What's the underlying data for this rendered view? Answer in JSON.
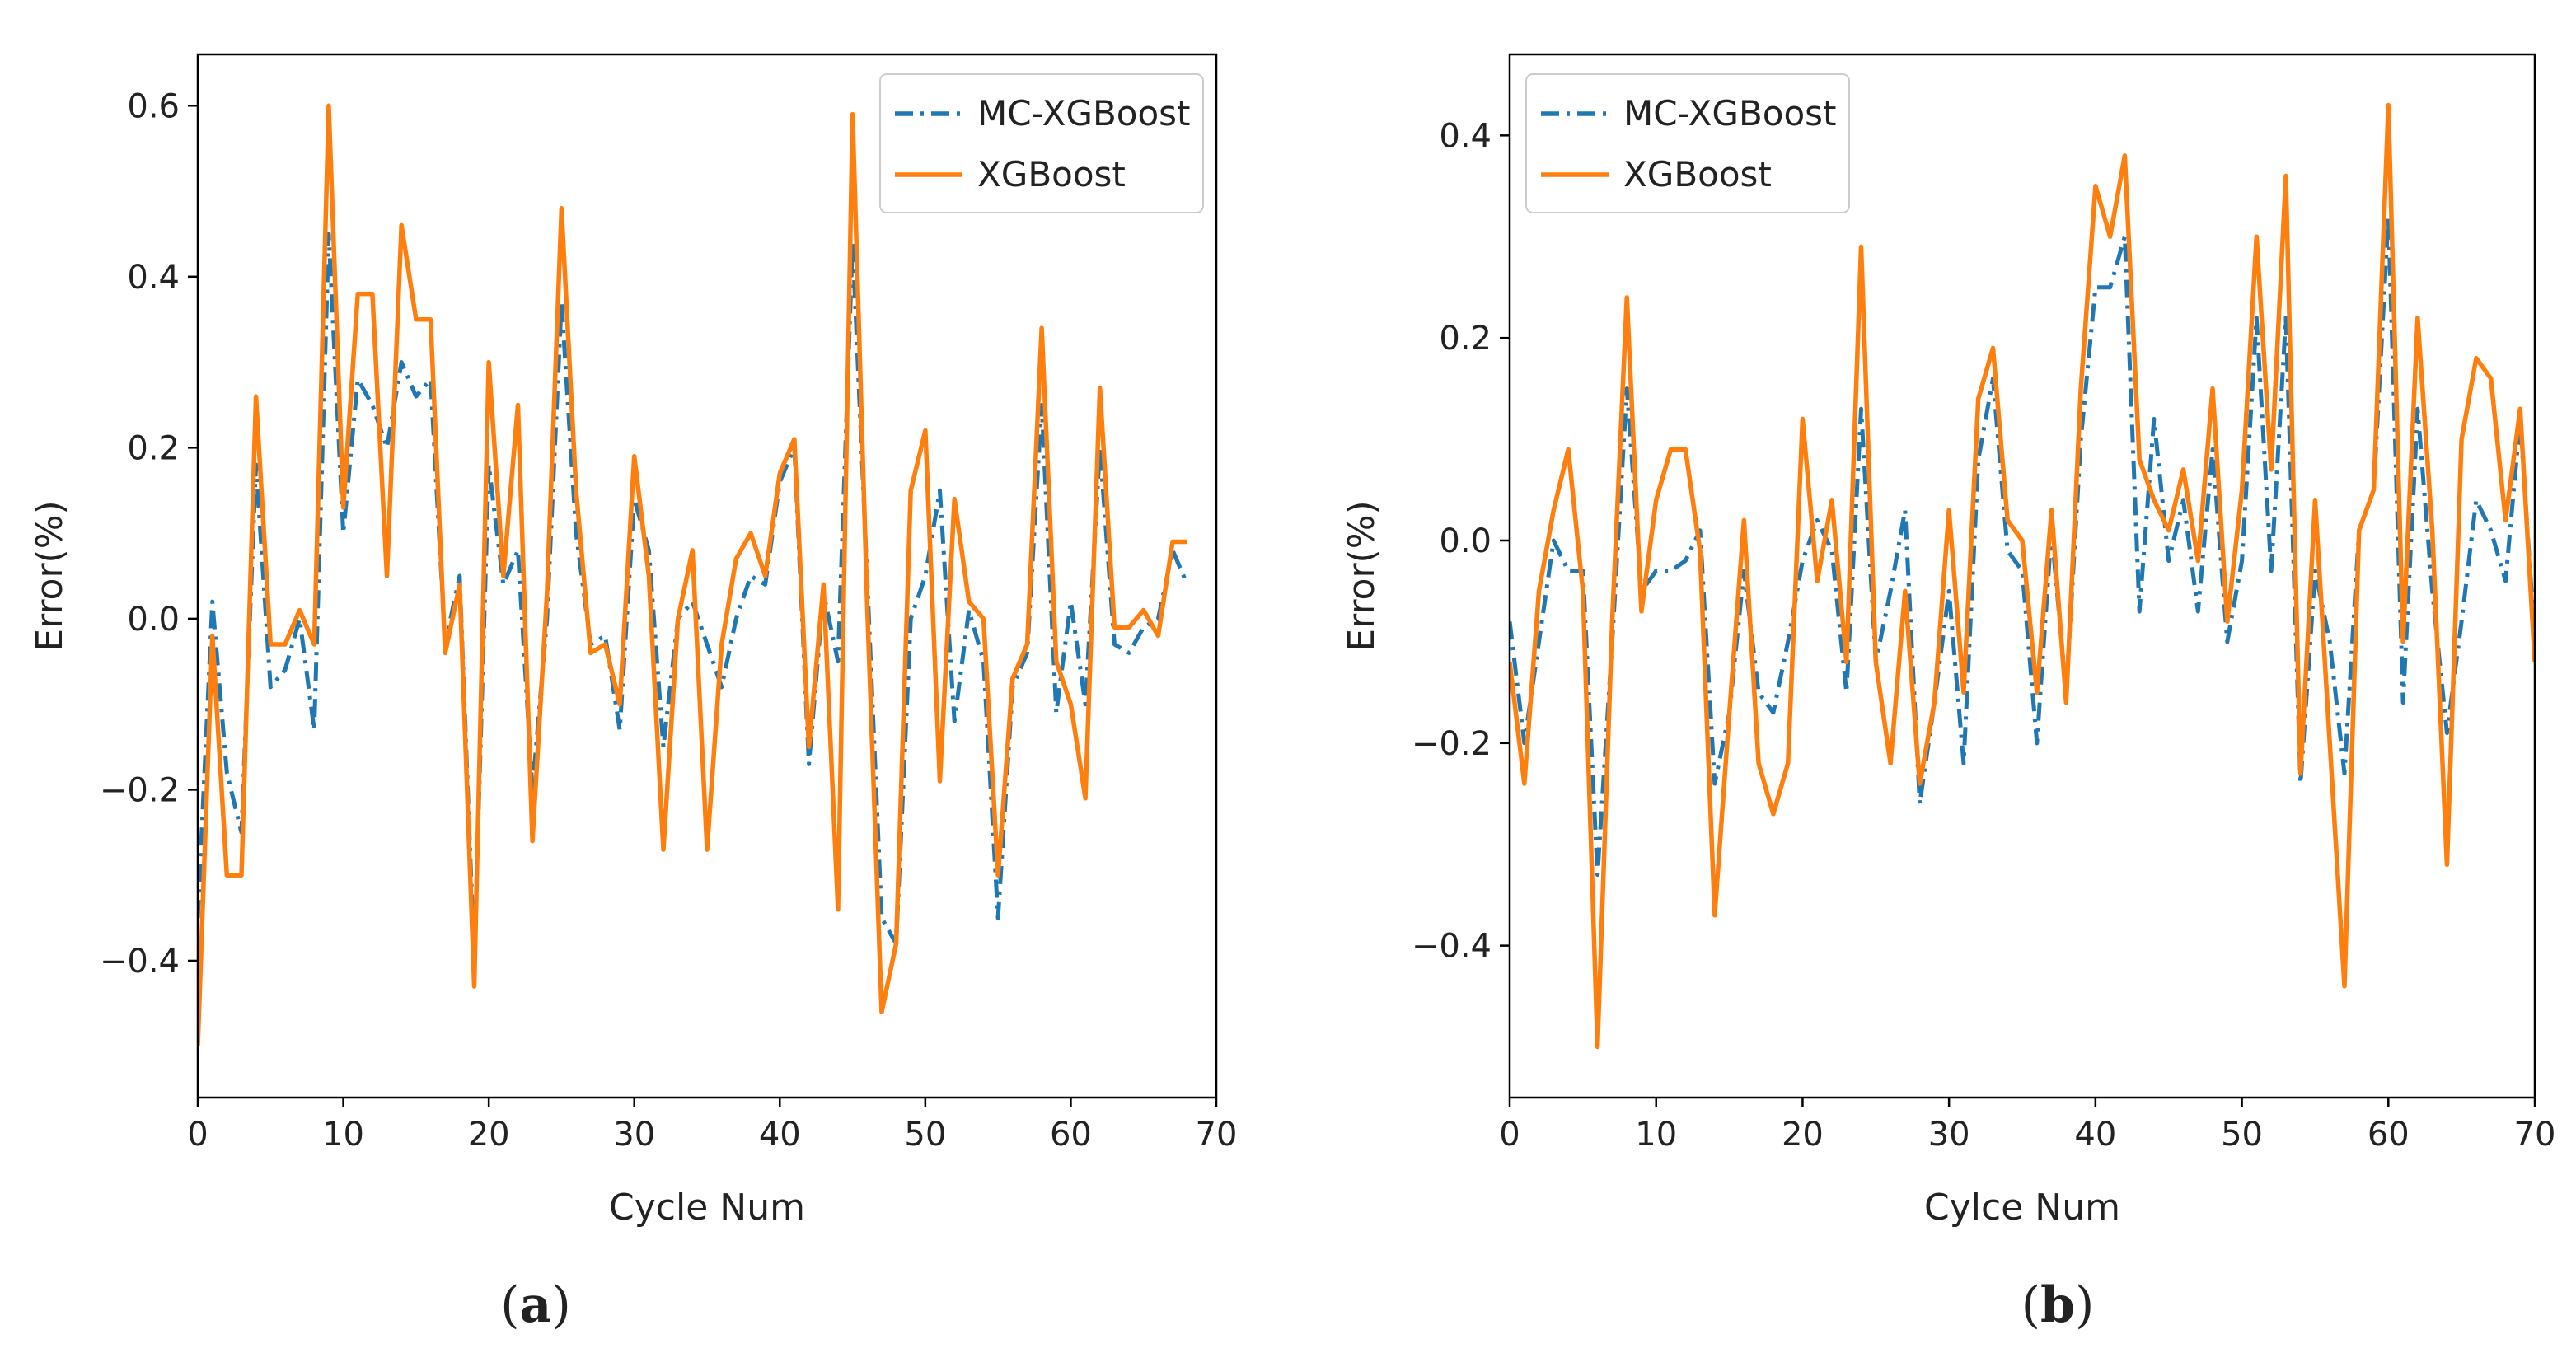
{
  "figure": {
    "colors": {
      "mc_xgboost": "#1f77b4",
      "xgboost": "#ff7f0e",
      "axis": "#000000",
      "background": "#ffffff"
    }
  },
  "chart_data": [
    {
      "type": "line",
      "panel_label": {
        "open": "(",
        "letter": "a",
        "close": ")"
      },
      "xlabel": "Cycle Num",
      "ylabel": "Error(%)",
      "xlim": [
        0,
        70
      ],
      "ylim": [
        -0.56,
        0.66
      ],
      "xticks": [
        0,
        10,
        20,
        30,
        40,
        50,
        60,
        70
      ],
      "xtick_labels": [
        "0",
        "10",
        "20",
        "30",
        "40",
        "50",
        "60",
        "70"
      ],
      "yticks": [
        -0.4,
        -0.2,
        0.0,
        0.2,
        0.4,
        0.6
      ],
      "ytick_labels": [
        "−0.4",
        "−0.2",
        "0.0",
        "0.2",
        "0.4",
        "0.6"
      ],
      "legend_position": "top-right",
      "series": [
        {
          "name": "MC-XGBoost",
          "style": "dashed",
          "color": "#1f77b4",
          "values": [
            -0.35,
            0.02,
            -0.18,
            -0.25,
            0.18,
            -0.08,
            -0.06,
            0.0,
            -0.13,
            0.45,
            0.1,
            0.28,
            0.25,
            0.2,
            0.3,
            0.26,
            0.28,
            -0.03,
            0.05,
            -0.4,
            0.18,
            0.04,
            0.08,
            -0.2,
            0.0,
            0.37,
            0.1,
            -0.03,
            -0.02,
            -0.13,
            0.14,
            0.08,
            -0.15,
            0.0,
            0.02,
            -0.03,
            -0.08,
            0.0,
            0.05,
            0.04,
            0.16,
            0.2,
            -0.17,
            0.03,
            -0.05,
            0.44,
            0.05,
            -0.35,
            -0.38,
            0.0,
            0.05,
            0.15,
            -0.12,
            0.01,
            -0.05,
            -0.35,
            -0.08,
            -0.04,
            0.25,
            -0.11,
            0.02,
            -0.1,
            0.2,
            -0.03,
            -0.04,
            -0.01,
            0.0,
            0.08,
            0.04
          ]
        },
        {
          "name": "XGBoost",
          "style": "solid",
          "color": "#ff7f0e",
          "values": [
            -0.5,
            -0.02,
            -0.3,
            -0.3,
            0.26,
            -0.03,
            -0.03,
            0.01,
            -0.03,
            0.6,
            0.13,
            0.38,
            0.38,
            0.05,
            0.46,
            0.35,
            0.35,
            -0.04,
            0.04,
            -0.43,
            0.3,
            0.05,
            0.25,
            -0.26,
            0.03,
            0.48,
            0.15,
            -0.04,
            -0.03,
            -0.1,
            0.19,
            0.05,
            -0.27,
            0.0,
            0.08,
            -0.27,
            -0.03,
            0.07,
            0.1,
            0.05,
            0.17,
            0.21,
            -0.15,
            0.04,
            -0.34,
            0.59,
            0.02,
            -0.46,
            -0.38,
            0.15,
            0.22,
            -0.19,
            0.14,
            0.02,
            0.0,
            -0.3,
            -0.07,
            -0.03,
            0.34,
            -0.05,
            -0.1,
            -0.21,
            0.27,
            -0.01,
            -0.01,
            0.01,
            -0.02,
            0.09,
            0.09
          ]
        }
      ]
    },
    {
      "type": "line",
      "panel_label": {
        "open": "(",
        "letter": "b",
        "close": ")"
      },
      "xlabel": "Cylce Num",
      "ylabel": "Error(%)",
      "xlim": [
        0,
        70
      ],
      "ylim": [
        -0.55,
        0.48
      ],
      "xticks": [
        0,
        10,
        20,
        30,
        40,
        50,
        60,
        70
      ],
      "xtick_labels": [
        "0",
        "10",
        "20",
        "30",
        "40",
        "50",
        "60",
        "70"
      ],
      "yticks": [
        -0.4,
        -0.2,
        0.0,
        0.2,
        0.4
      ],
      "ytick_labels": [
        "−0.4",
        "−0.2",
        "0.0",
        "0.2",
        "0.4"
      ],
      "legend_position": "top-left",
      "series": [
        {
          "name": "MC-XGBoost",
          "style": "dashed",
          "color": "#1f77b4",
          "values": [
            -0.08,
            -0.2,
            -0.1,
            0.0,
            -0.03,
            -0.03,
            -0.33,
            -0.1,
            0.15,
            -0.05,
            -0.03,
            -0.03,
            -0.02,
            0.01,
            -0.24,
            -0.17,
            -0.03,
            -0.15,
            -0.17,
            -0.1,
            -0.02,
            0.02,
            -0.01,
            -0.15,
            0.13,
            -0.12,
            -0.05,
            0.03,
            -0.26,
            -0.16,
            -0.05,
            -0.22,
            0.08,
            0.16,
            -0.01,
            -0.03,
            -0.2,
            0.01,
            -0.15,
            0.1,
            0.25,
            0.25,
            0.3,
            -0.07,
            0.12,
            -0.02,
            0.04,
            -0.07,
            0.09,
            -0.1,
            -0.02,
            0.22,
            -0.03,
            0.22,
            -0.24,
            -0.03,
            -0.1,
            -0.23,
            0.01,
            0.05,
            0.32,
            -0.16,
            0.13,
            -0.05,
            -0.19,
            -0.08,
            0.04,
            0.01,
            -0.04,
            0.12,
            -0.1
          ]
        },
        {
          "name": "XGBoost",
          "style": "solid",
          "color": "#ff7f0e",
          "values": [
            -0.12,
            -0.24,
            -0.05,
            0.03,
            0.09,
            -0.05,
            -0.5,
            -0.08,
            0.24,
            -0.07,
            0.04,
            0.09,
            0.09,
            -0.01,
            -0.37,
            -0.17,
            0.02,
            -0.22,
            -0.27,
            -0.22,
            0.12,
            -0.04,
            0.04,
            -0.12,
            0.29,
            -0.12,
            -0.22,
            -0.05,
            -0.24,
            -0.16,
            0.03,
            -0.15,
            0.14,
            0.19,
            0.02,
            0.0,
            -0.15,
            0.03,
            -0.16,
            0.15,
            0.35,
            0.3,
            0.38,
            0.08,
            0.04,
            0.01,
            0.07,
            -0.02,
            0.15,
            -0.08,
            0.05,
            0.3,
            0.07,
            0.36,
            -0.23,
            0.04,
            -0.2,
            -0.44,
            0.01,
            0.05,
            0.43,
            -0.1,
            0.22,
            0.01,
            -0.32,
            0.1,
            0.18,
            0.16,
            0.02,
            0.13,
            -0.12
          ]
        }
      ]
    }
  ]
}
